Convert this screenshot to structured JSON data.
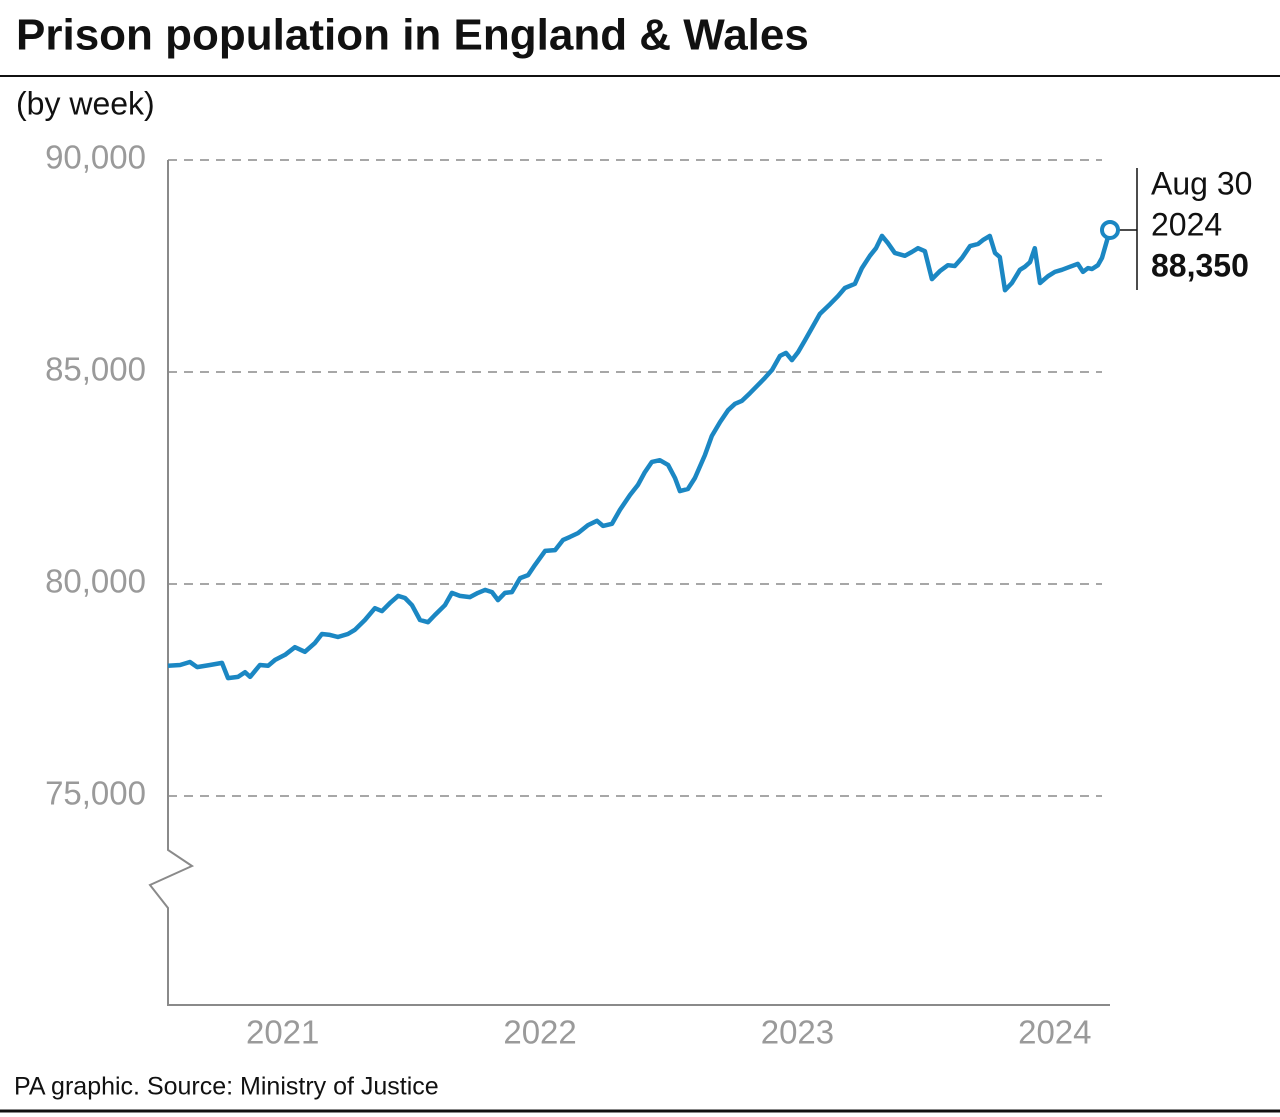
{
  "chart_data": {
    "type": "line",
    "title": "Prison population in England & Wales",
    "subtitle": "(by week)",
    "source": "PA graphic. Source: Ministry of Justice",
    "xlim": [
      2021.0,
      2024.66
    ],
    "xticks": [
      {
        "value": 2021.5,
        "label": "2021"
      },
      {
        "value": 2022.5,
        "label": "2022"
      },
      {
        "value": 2023.5,
        "label": "2023"
      },
      {
        "value": 2024.5,
        "label": "2024"
      }
    ],
    "ylim": [
      70000,
      90000
    ],
    "yticks": [
      {
        "value": 75000,
        "label": "75,000"
      },
      {
        "value": 80000,
        "label": "80,000"
      },
      {
        "value": 85000,
        "label": "85,000"
      },
      {
        "value": 90000,
        "label": "90,000"
      }
    ],
    "grid": true,
    "series": [
      {
        "name": "Prison population",
        "color": "#1b87c3",
        "x": [
          2021.0,
          2021.047,
          2021.085,
          2021.113,
          2021.163,
          2021.21,
          2021.233,
          2021.272,
          2021.299,
          2021.319,
          2021.357,
          2021.389,
          2021.416,
          2021.455,
          2021.493,
          2021.532,
          2021.571,
          2021.598,
          2021.629,
          2021.66,
          2021.699,
          2021.726,
          2021.765,
          2021.804,
          2021.831,
          2021.862,
          2021.894,
          2021.921,
          2021.948,
          2021.979,
          2022.01,
          2022.037,
          2022.076,
          2022.103,
          2022.134,
          2022.173,
          2022.204,
          2022.232,
          2022.259,
          2022.282,
          2022.309,
          2022.336,
          2022.368,
          2022.399,
          2022.426,
          2022.465,
          2022.504,
          2022.535,
          2022.562,
          2022.593,
          2022.632,
          2022.667,
          2022.69,
          2022.725,
          2022.756,
          2022.795,
          2022.826,
          2022.853,
          2022.88,
          2022.911,
          2022.943,
          2022.97,
          2022.989,
          2023.02,
          2023.047,
          2023.086,
          2023.113,
          2023.145,
          2023.176,
          2023.203,
          2023.23,
          2023.261,
          2023.292,
          2023.319,
          2023.347,
          2023.378,
          2023.401,
          2023.424,
          2023.448,
          2023.475,
          2023.502,
          2023.533,
          2023.572,
          2023.603,
          2023.63,
          2023.669,
          2023.696,
          2023.727,
          2023.751,
          2023.774,
          2023.797,
          2023.824,
          2023.863,
          2023.89,
          2023.914,
          2023.941,
          2023.968,
          2023.999,
          2024.03,
          2024.057,
          2024.085,
          2024.116,
          2024.147,
          2024.166,
          2024.193,
          2024.213,
          2024.232,
          2024.252,
          2024.279,
          2024.31,
          2024.329,
          2024.349,
          2024.368,
          2024.388,
          2024.419,
          2024.446,
          2024.473,
          2024.504,
          2024.535,
          2024.555,
          2024.574,
          2024.59,
          2024.613,
          2024.629,
          2024.66
        ],
        "values": [
          78070,
          78090,
          78160,
          78040,
          78090,
          78140,
          77780,
          77810,
          77920,
          77810,
          78090,
          78070,
          78210,
          78330,
          78510,
          78400,
          78610,
          78820,
          78800,
          78750,
          78820,
          78920,
          79150,
          79430,
          79360,
          79550,
          79720,
          79670,
          79500,
          79150,
          79100,
          79270,
          79500,
          79790,
          79720,
          79690,
          79790,
          79860,
          79810,
          79620,
          79790,
          79810,
          80140,
          80210,
          80450,
          80780,
          80800,
          81040,
          81110,
          81200,
          81390,
          81490,
          81370,
          81420,
          81750,
          82100,
          82340,
          82640,
          82880,
          82920,
          82810,
          82500,
          82190,
          82240,
          82500,
          83040,
          83490,
          83820,
          84100,
          84250,
          84320,
          84500,
          84690,
          84860,
          85050,
          85380,
          85450,
          85280,
          85470,
          85750,
          86040,
          86370,
          86600,
          86790,
          86980,
          87080,
          87450,
          87740,
          87920,
          88210,
          88040,
          87810,
          87740,
          87830,
          87920,
          87850,
          87190,
          87380,
          87520,
          87500,
          87690,
          87970,
          88020,
          88110,
          88210,
          87810,
          87710,
          86930,
          87100,
          87410,
          87480,
          87590,
          87920,
          87100,
          87260,
          87360,
          87410,
          87480,
          87550,
          87360,
          87450,
          87430,
          87520,
          87690,
          88350
        ]
      }
    ],
    "annotation": {
      "date_label": [
        "Aug 30",
        "2024"
      ],
      "value": 88350,
      "label": "88,350"
    }
  }
}
